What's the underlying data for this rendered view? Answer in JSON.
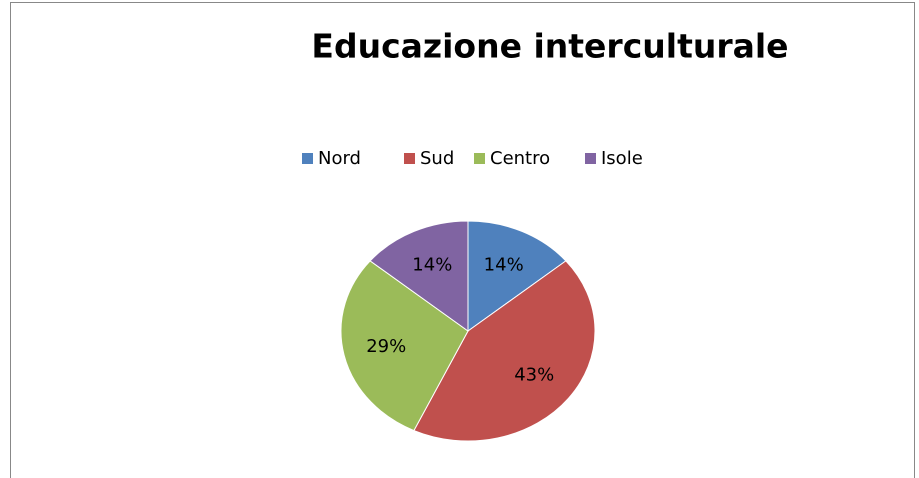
{
  "chart_data": {
    "type": "pie",
    "title": "Educazione interculturale",
    "categories": [
      "Nord",
      "Sud",
      "Centro",
      "Isole"
    ],
    "values": [
      14,
      43,
      29,
      14
    ],
    "value_labels": [
      "14%",
      "43%",
      "29%",
      "14%"
    ],
    "colors": [
      "#4f81bd",
      "#c0504d",
      "#9bbb59",
      "#8064a2"
    ],
    "legend": "top"
  }
}
